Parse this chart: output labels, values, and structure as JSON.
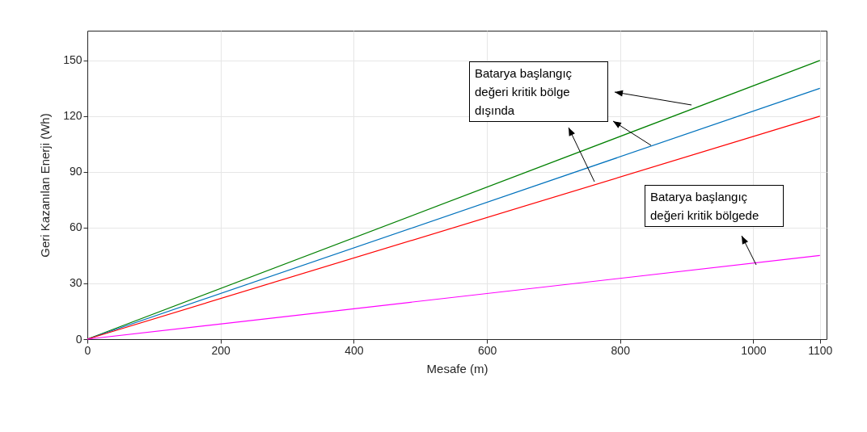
{
  "chart_data": {
    "type": "line",
    "xlabel": "Mesafe (m)",
    "ylabel": "Geri Kazanılan Enerji (Wh)",
    "x": [
      0,
      1100
    ],
    "series": [
      {
        "color": "#008000",
        "values": [
          0,
          150
        ]
      },
      {
        "color": "#0072bd",
        "values": [
          0,
          135
        ]
      },
      {
        "color": "#ff0000",
        "values": [
          0,
          120
        ]
      },
      {
        "color": "#ff00ff",
        "values": [
          0,
          45
        ]
      }
    ],
    "xlim": [
      0,
      1110
    ],
    "ylim": [
      0,
      166
    ],
    "xticks": [
      0,
      200,
      400,
      600,
      800,
      1000,
      1100
    ],
    "yticks": [
      0,
      30,
      60,
      90,
      120,
      150
    ],
    "grid": true,
    "legend": false,
    "marker": "none",
    "line_style": "solid",
    "annotations": [
      "Batarya başlangıç değeri kritik bölge dışında",
      "Batarya başlangıç değeri kritik bölgede"
    ]
  }
}
